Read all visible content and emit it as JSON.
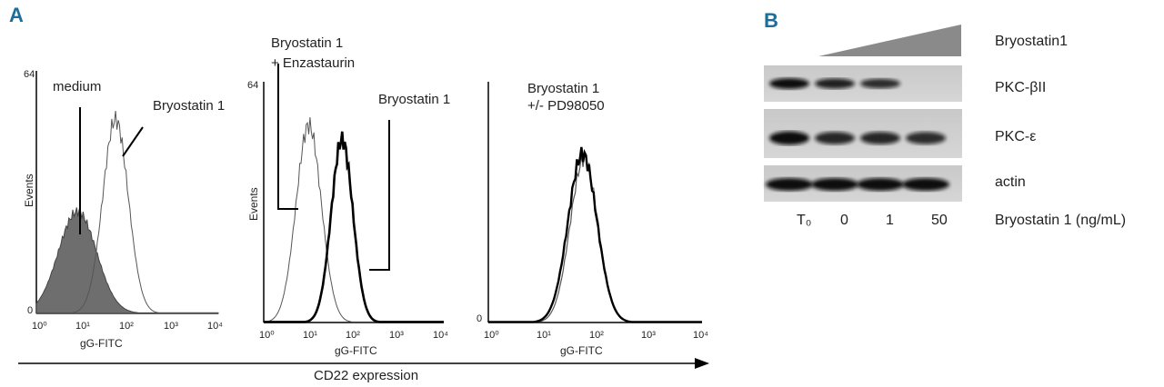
{
  "panels": {
    "A": "A",
    "B": "B"
  },
  "bottom_axis_label": "CD22 expression",
  "chart_data": [
    {
      "type": "histogram",
      "xlabel": "gG-FITC",
      "ylabel": "Events",
      "y_max_label": "64",
      "y_min_label": "0",
      "x_ticks": [
        "10⁰",
        "10¹",
        "10²",
        "10³",
        "10⁴"
      ],
      "x_scale": "log",
      "xlim": [
        1,
        10000
      ],
      "annotations": [
        "medium",
        "Bryostatin 1"
      ],
      "series": [
        {
          "name": "medium",
          "style": "filled",
          "color": "#6e6e6e",
          "peak_x": 8,
          "peak_frac": 0.42
        },
        {
          "name": "Bryostatin 1",
          "style": "thin-line",
          "color": "#555555",
          "peak_x": 55,
          "peak_frac": 0.8
        }
      ]
    },
    {
      "type": "histogram",
      "xlabel": "gG-FITC",
      "ylabel": "Events",
      "y_max_label": "64",
      "x_ticks": [
        "10⁰",
        "10¹",
        "10²",
        "10³",
        "10⁴"
      ],
      "x_scale": "log",
      "xlim": [
        1,
        10000
      ],
      "annotations": [
        "Bryostatin 1",
        "+ Enzastaurin",
        "Bryostatin 1"
      ],
      "series": [
        {
          "name": "Bryostatin 1 + Enzastaurin",
          "style": "thin-line",
          "color": "#555555",
          "peak_x": 10,
          "peak_frac": 0.82
        },
        {
          "name": "Bryostatin 1",
          "style": "thick-line",
          "color": "#000000",
          "peak_x": 55,
          "peak_frac": 0.76
        }
      ]
    },
    {
      "type": "histogram",
      "xlabel": "gG-FITC",
      "x_ticks": [
        "10⁰",
        "10¹",
        "10²",
        "10³",
        "10⁴"
      ],
      "y_min_label": "0",
      "x_scale": "log",
      "xlim": [
        1,
        10000
      ],
      "annotations": [
        "Bryostatin 1",
        "+/- PD98050"
      ],
      "series": [
        {
          "name": "Bryostatin 1",
          "style": "thick-line",
          "color": "#000000",
          "peak_x": 58,
          "peak_frac": 0.7
        },
        {
          "name": "Bryostatin 1 + PD98050",
          "style": "thin-line",
          "color": "#555555",
          "peak_x": 62,
          "peak_frac": 0.68
        }
      ]
    }
  ],
  "western_blot": {
    "treatment_label": "Bryostatin1",
    "rows": [
      {
        "label": "PKC-βII",
        "intensities": [
          1.0,
          0.85,
          0.75,
          0.0
        ]
      },
      {
        "label": "PKC-ε",
        "intensities": [
          1.0,
          0.8,
          0.8,
          0.75
        ]
      },
      {
        "label": "actin",
        "intensities": [
          1.0,
          1.0,
          1.0,
          1.0
        ]
      }
    ],
    "lanes": [
      "T₀",
      "0",
      "1",
      "50"
    ],
    "lanes_label": "Bryostatin 1 (ng/mL)"
  }
}
